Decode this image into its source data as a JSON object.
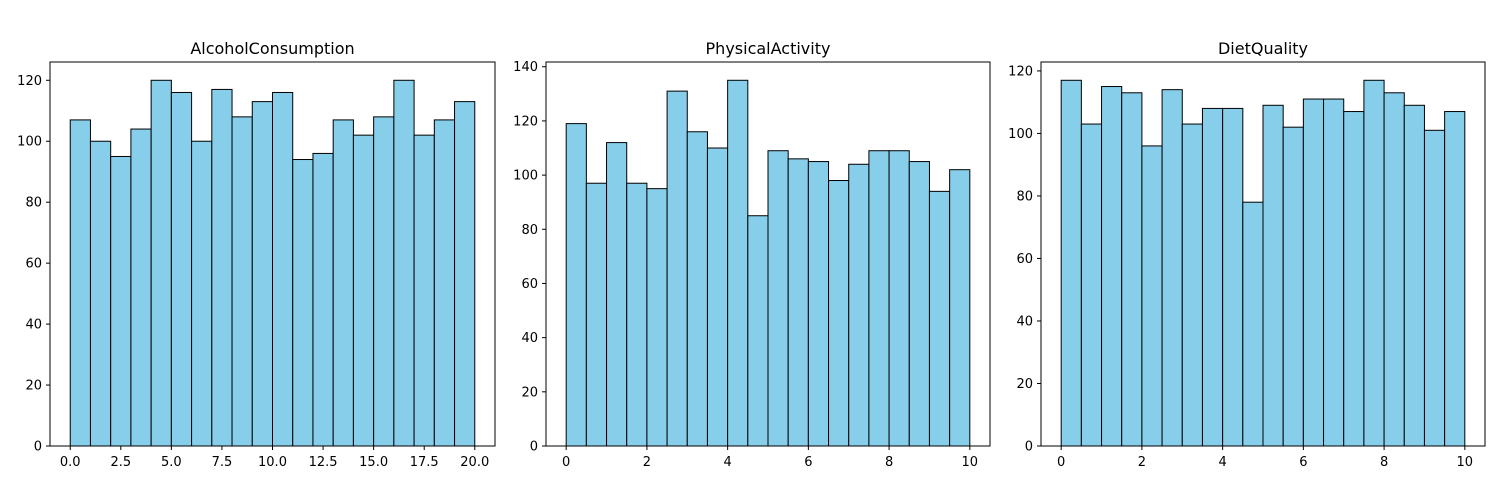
{
  "colors": {
    "bar_fill": "#87CEEB",
    "bar_edge": "#000000",
    "axis": "#000000",
    "background": "#ffffff"
  },
  "chart_data": [
    {
      "type": "bar",
      "title": "AlcoholConsumption",
      "xlabel": "",
      "ylabel": "",
      "xlim": [
        -1.0,
        21.0
      ],
      "ylim": [
        0,
        126
      ],
      "bin_edges": [
        0,
        1,
        2,
        3,
        4,
        5,
        6,
        7,
        8,
        9,
        10,
        11,
        12,
        13,
        14,
        15,
        16,
        17,
        18,
        19,
        20
      ],
      "values": [
        107,
        100,
        95,
        104,
        120,
        116,
        100,
        117,
        108,
        113,
        116,
        94,
        96,
        107,
        102,
        108,
        120,
        102,
        107,
        113
      ],
      "xticks": [
        0,
        2.5,
        5,
        7.5,
        10,
        12.5,
        15,
        17.5,
        20
      ],
      "xtick_labels": [
        "0.0",
        "2.5",
        "5.0",
        "7.5",
        "10.0",
        "12.5",
        "15.0",
        "17.5",
        "20.0"
      ],
      "yticks": [
        0,
        20,
        40,
        60,
        80,
        100,
        120
      ],
      "ytick_labels": [
        "0",
        "20",
        "40",
        "60",
        "80",
        "100",
        "120"
      ]
    },
    {
      "type": "bar",
      "title": "PhysicalActivity",
      "xlabel": "",
      "ylabel": "",
      "xlim": [
        -0.5,
        10.5
      ],
      "ylim": [
        0,
        141.75
      ],
      "bin_edges": [
        0,
        0.5,
        1,
        1.5,
        2,
        2.5,
        3,
        3.5,
        4,
        4.5,
        5,
        5.5,
        6,
        6.5,
        7,
        7.5,
        8,
        8.5,
        9,
        9.5,
        10
      ],
      "values": [
        119,
        97,
        112,
        97,
        95,
        131,
        116,
        110,
        135,
        85,
        109,
        106,
        105,
        98,
        104,
        109,
        109,
        105,
        94,
        102
      ],
      "xticks": [
        0,
        2,
        4,
        6,
        8,
        10
      ],
      "xtick_labels": [
        "0",
        "2",
        "4",
        "6",
        "8",
        "10"
      ],
      "yticks": [
        0,
        20,
        40,
        60,
        80,
        100,
        120,
        140
      ],
      "ytick_labels": [
        "0",
        "20",
        "40",
        "60",
        "80",
        "100",
        "120",
        "140"
      ]
    },
    {
      "type": "bar",
      "title": "DietQuality",
      "xlabel": "",
      "ylabel": "",
      "xlim": [
        -0.5,
        10.5
      ],
      "ylim": [
        0,
        122.85
      ],
      "bin_edges": [
        0,
        0.5,
        1,
        1.5,
        2,
        2.5,
        3,
        3.5,
        4,
        4.5,
        5,
        5.5,
        6,
        6.5,
        7,
        7.5,
        8,
        8.5,
        9,
        9.5,
        10
      ],
      "values": [
        117,
        103,
        115,
        113,
        96,
        114,
        103,
        108,
        108,
        78,
        109,
        102,
        111,
        111,
        107,
        117,
        113,
        109,
        101,
        107
      ],
      "xticks": [
        0,
        2,
        4,
        6,
        8,
        10
      ],
      "xtick_labels": [
        "0",
        "2",
        "4",
        "6",
        "8",
        "10"
      ],
      "yticks": [
        0,
        20,
        40,
        60,
        80,
        100,
        120
      ],
      "ytick_labels": [
        "0",
        "20",
        "40",
        "60",
        "80",
        "100",
        "120"
      ]
    }
  ]
}
